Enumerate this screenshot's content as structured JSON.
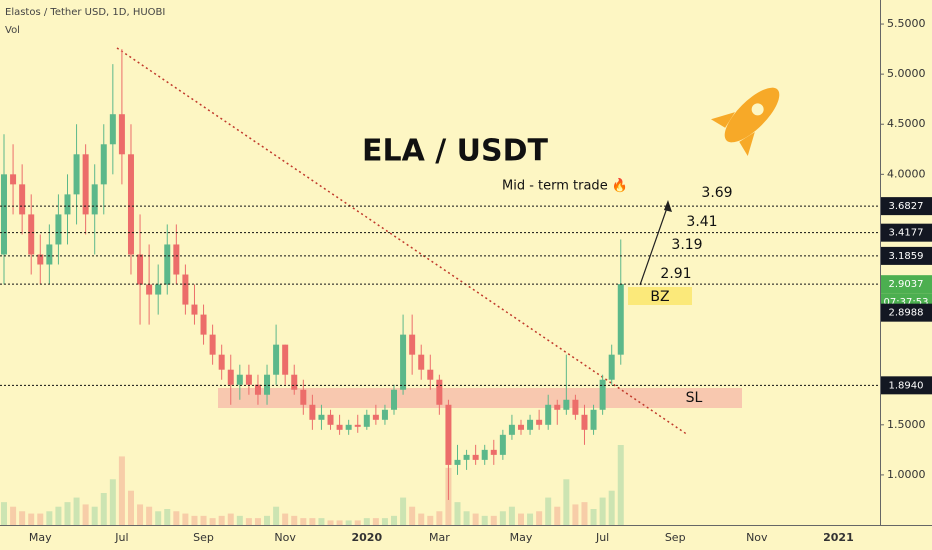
{
  "header": {
    "symbol": "Elastos / Tether USD, 1D, HUOBI",
    "volume_label": "Vol"
  },
  "chart_data": {
    "type": "candlestick",
    "title": "ELA / USDT",
    "subtitle": "Mid - term trade 🔥",
    "annotations": [
      "3.69",
      "3.41",
      "3.19",
      "2.91",
      "BZ",
      "SL"
    ],
    "categories": [
      null,
      null,
      null,
      null,
      "May",
      null,
      null,
      null,
      null,
      null,
      null,
      null,
      null,
      "Jul",
      null,
      null,
      null,
      null,
      null,
      null,
      null,
      null,
      "Sep",
      null,
      null,
      null,
      null,
      null,
      null,
      null,
      null,
      "Nov",
      null,
      null,
      null,
      null,
      null,
      null,
      null,
      null,
      "2020",
      null,
      null,
      null,
      null,
      null,
      null,
      null,
      "Mar",
      null,
      null,
      null,
      null,
      null,
      null,
      null,
      null,
      "May",
      null,
      null,
      null,
      null,
      null,
      null,
      null,
      null,
      "Jul",
      null,
      null,
      null,
      null,
      null,
      null,
      null,
      "Sep",
      null,
      null,
      null,
      null,
      null,
      null,
      null,
      null,
      "Nov",
      null,
      null,
      null,
      null,
      null,
      null,
      null,
      null,
      "2021",
      null,
      null,
      null,
      null
    ],
    "open": [
      3.2,
      4.0,
      3.9,
      3.6,
      3.2,
      3.1,
      3.3,
      3.6,
      3.8,
      4.2,
      3.6,
      3.9,
      4.3,
      4.6,
      4.2,
      3.2,
      2.9,
      2.8,
      2.9,
      3.3,
      3.0,
      2.7,
      2.6,
      2.4,
      2.2,
      2.05,
      1.9,
      2.0,
      1.9,
      1.8,
      2.0,
      2.3,
      2.0,
      1.85,
      1.7,
      1.55,
      1.6,
      1.5,
      1.45,
      1.5,
      1.48,
      1.6,
      1.55,
      1.65,
      1.85,
      2.4,
      2.2,
      2.05,
      1.95,
      1.7,
      1.1,
      1.15,
      1.2,
      1.15,
      1.25,
      1.2,
      1.4,
      1.5,
      1.45,
      1.55,
      1.5,
      1.7,
      1.65,
      1.75,
      1.6,
      1.45,
      1.65,
      1.95,
      2.2,
      null,
      null,
      null,
      null,
      null,
      null,
      null,
      null,
      null,
      null,
      null,
      null,
      null,
      null,
      null,
      null,
      null,
      null,
      null,
      null,
      null,
      null,
      null,
      null,
      null,
      null,
      null,
      null
    ],
    "high": [
      4.4,
      4.3,
      4.1,
      3.8,
      3.4,
      3.5,
      3.8,
      4.0,
      4.5,
      4.3,
      4.1,
      4.5,
      5.1,
      5.25,
      4.5,
      3.6,
      3.3,
      3.1,
      3.5,
      3.5,
      3.1,
      2.9,
      2.7,
      2.5,
      2.3,
      2.2,
      2.1,
      2.1,
      2.0,
      2.1,
      2.5,
      2.3,
      2.1,
      1.95,
      1.8,
      1.7,
      1.65,
      1.6,
      1.55,
      1.6,
      1.65,
      1.7,
      1.7,
      1.9,
      2.6,
      2.6,
      2.3,
      2.2,
      2.0,
      1.75,
      1.3,
      1.25,
      1.3,
      1.3,
      1.35,
      1.45,
      1.6,
      1.55,
      1.6,
      1.65,
      1.8,
      1.75,
      2.2,
      1.8,
      1.7,
      1.7,
      2.0,
      2.3,
      3.35,
      null,
      null,
      null,
      null,
      null,
      null,
      null,
      null,
      null,
      null,
      null,
      null,
      null,
      null,
      null,
      null,
      null,
      null,
      null,
      null,
      null,
      null,
      null,
      null,
      null,
      null,
      null,
      null
    ],
    "low": [
      2.9,
      3.6,
      3.4,
      3.0,
      2.9,
      2.9,
      3.1,
      3.3,
      3.5,
      3.4,
      3.2,
      3.6,
      4.0,
      3.9,
      3.0,
      2.5,
      2.5,
      2.6,
      2.8,
      2.9,
      2.6,
      2.5,
      2.3,
      2.1,
      1.95,
      1.7,
      1.75,
      1.8,
      1.7,
      1.7,
      1.9,
      1.9,
      1.8,
      1.6,
      1.45,
      1.45,
      1.45,
      1.4,
      1.4,
      1.42,
      1.45,
      1.5,
      1.5,
      1.6,
      1.8,
      2.0,
      1.95,
      1.85,
      1.6,
      0.75,
      1.0,
      1.05,
      1.1,
      1.1,
      1.1,
      1.15,
      1.35,
      1.4,
      1.4,
      1.45,
      1.45,
      1.5,
      1.6,
      1.55,
      1.3,
      1.4,
      1.6,
      1.9,
      2.1,
      null,
      null,
      null,
      null,
      null,
      null,
      null,
      null,
      null,
      null,
      null,
      null,
      null,
      null,
      null,
      null,
      null,
      null,
      null,
      null,
      null,
      null,
      null,
      null,
      null,
      null,
      null,
      null
    ],
    "close": [
      4.0,
      3.9,
      3.6,
      3.2,
      3.1,
      3.3,
      3.6,
      3.8,
      4.2,
      3.6,
      3.9,
      4.3,
      4.6,
      4.2,
      3.2,
      2.9,
      2.8,
      2.9,
      3.3,
      3.0,
      2.7,
      2.6,
      2.4,
      2.2,
      2.05,
      1.9,
      2.0,
      1.9,
      1.8,
      2.0,
      2.3,
      2.0,
      1.85,
      1.7,
      1.55,
      1.6,
      1.5,
      1.45,
      1.5,
      1.48,
      1.6,
      1.55,
      1.65,
      1.85,
      2.4,
      2.2,
      2.05,
      1.95,
      1.7,
      1.1,
      1.15,
      1.2,
      1.15,
      1.25,
      1.2,
      1.4,
      1.5,
      1.45,
      1.55,
      1.5,
      1.7,
      1.65,
      1.75,
      1.6,
      1.45,
      1.65,
      1.95,
      2.2,
      2.9037,
      null,
      null,
      null,
      null,
      null,
      null,
      null,
      null,
      null,
      null,
      null,
      null,
      null,
      null,
      null,
      null,
      null,
      null,
      null,
      null,
      null,
      null,
      null,
      null,
      null,
      null,
      null,
      null
    ],
    "volume": [
      10,
      8,
      6,
      5,
      5,
      6,
      8,
      10,
      12,
      9,
      8,
      14,
      20,
      30,
      15,
      9,
      8,
      6,
      7,
      6,
      5,
      4,
      4,
      3,
      4,
      5,
      4,
      3,
      3,
      4,
      8,
      5,
      4,
      3,
      3,
      3,
      2,
      2,
      2,
      2,
      3,
      3,
      3,
      4,
      12,
      8,
      5,
      4,
      6,
      25,
      10,
      6,
      5,
      4,
      4,
      6,
      8,
      5,
      5,
      6,
      12,
      8,
      20,
      9,
      10,
      7,
      12,
      15,
      35,
      null,
      null,
      null,
      null,
      null,
      null,
      null,
      null,
      null,
      null,
      null,
      null,
      null,
      null,
      null,
      null,
      null,
      null,
      null,
      null,
      null,
      null,
      null,
      null,
      null,
      null,
      null,
      null
    ],
    "up_color": "#5cb88a",
    "down_color": "#ec6d6a",
    "ylim": [
      0.5,
      5.74
    ],
    "yticks": [
      {
        "value": 1,
        "label": "1.0000"
      },
      {
        "value": 1.5,
        "label": "1.5000"
      },
      {
        "value": 4,
        "label": "4.0000"
      },
      {
        "value": 4.5,
        "label": "4.5000"
      },
      {
        "value": 5,
        "label": "5.0000"
      },
      {
        "value": 5.5,
        "label": "5.5000"
      }
    ],
    "price_levels": [
      3.6827,
      3.4177,
      3.1859,
      {
        "value": 1.894,
        "label": "1.8940"
      }
    ],
    "last_price": 2.9037,
    "countdown": "07:37:53",
    "prev_close": 2.8988
  }
}
